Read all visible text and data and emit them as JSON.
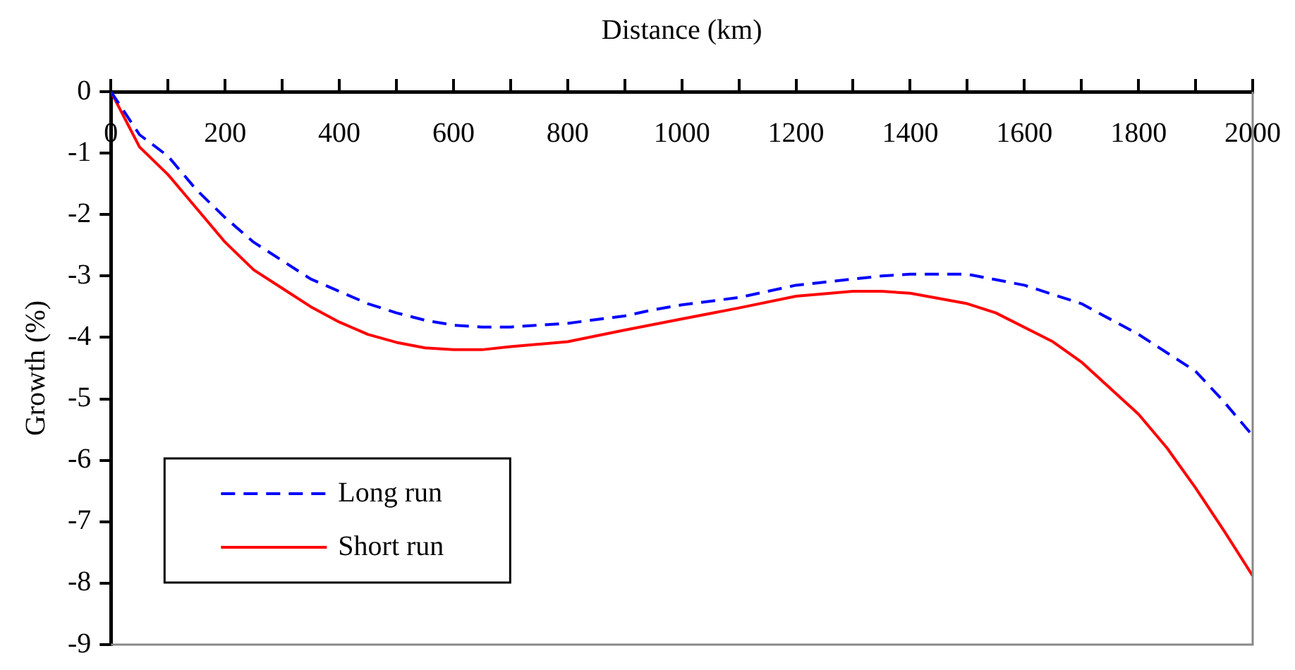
{
  "chart_data": {
    "type": "line",
    "xlabel": "Distance (km)",
    "ylabel": "Growth (%)",
    "xlim": [
      0,
      2000
    ],
    "xticks": [
      0,
      {
        "value": 100,
        "label": null
      },
      200,
      {
        "value": 300,
        "label": null
      },
      400,
      {
        "value": 500,
        "label": null
      },
      600,
      {
        "value": 700,
        "label": null
      },
      800,
      {
        "value": 900,
        "label": null
      },
      1000,
      {
        "value": 1100,
        "label": null
      },
      1200,
      {
        "value": 1300,
        "label": null
      },
      1400,
      {
        "value": 1500,
        "label": null
      },
      1600,
      {
        "value": 1700,
        "label": null
      },
      1800,
      {
        "value": 1900,
        "label": null
      },
      2000
    ],
    "ylim": [
      -9,
      0
    ],
    "yticks": [
      0,
      -1,
      -2,
      -3,
      -4,
      -5,
      -6,
      -7,
      -8,
      -9
    ],
    "grid": false,
    "legend": "bottom left",
    "marker": "none",
    "series": [
      {
        "name": "Long run",
        "color": "#0000ff",
        "line_style": "dashed",
        "x": [
          0,
          50,
          100,
          150,
          200,
          250,
          300,
          350,
          400,
          450,
          500,
          550,
          600,
          650,
          700,
          800,
          900,
          950,
          1000,
          1100,
          1150,
          1200,
          1300,
          1350,
          1400,
          1500,
          1600,
          1700,
          1800,
          1900,
          1950,
          2000
        ],
        "values": [
          0,
          -0.7,
          -1.05,
          -1.6,
          -2.05,
          -2.45,
          -2.75,
          -3.05,
          -3.25,
          -3.45,
          -3.6,
          -3.72,
          -3.8,
          -3.83,
          -3.83,
          -3.77,
          -3.65,
          -3.55,
          -3.47,
          -3.35,
          -3.25,
          -3.15,
          -3.05,
          -3.0,
          -2.97,
          -2.97,
          -3.15,
          -3.45,
          -3.95,
          -4.55,
          -5.05,
          -5.6
        ]
      },
      {
        "name": "Short run",
        "color": "#ff0000",
        "line_style": "solid",
        "x": [
          0,
          50,
          100,
          150,
          200,
          250,
          300,
          350,
          400,
          450,
          500,
          550,
          600,
          650,
          700,
          800,
          900,
          1000,
          1100,
          1200,
          1300,
          1350,
          1400,
          1500,
          1550,
          1650,
          1700,
          1800,
          1850,
          1900,
          1950,
          2000
        ],
        "values": [
          0,
          -0.9,
          -1.35,
          -1.9,
          -2.45,
          -2.9,
          -3.2,
          -3.5,
          -3.75,
          -3.95,
          -4.08,
          -4.17,
          -4.2,
          -4.2,
          -4.15,
          -4.07,
          -3.88,
          -3.7,
          -3.52,
          -3.33,
          -3.25,
          -3.25,
          -3.28,
          -3.45,
          -3.6,
          -4.07,
          -4.4,
          -5.25,
          -5.8,
          -6.45,
          -7.15,
          -7.88
        ]
      }
    ]
  }
}
